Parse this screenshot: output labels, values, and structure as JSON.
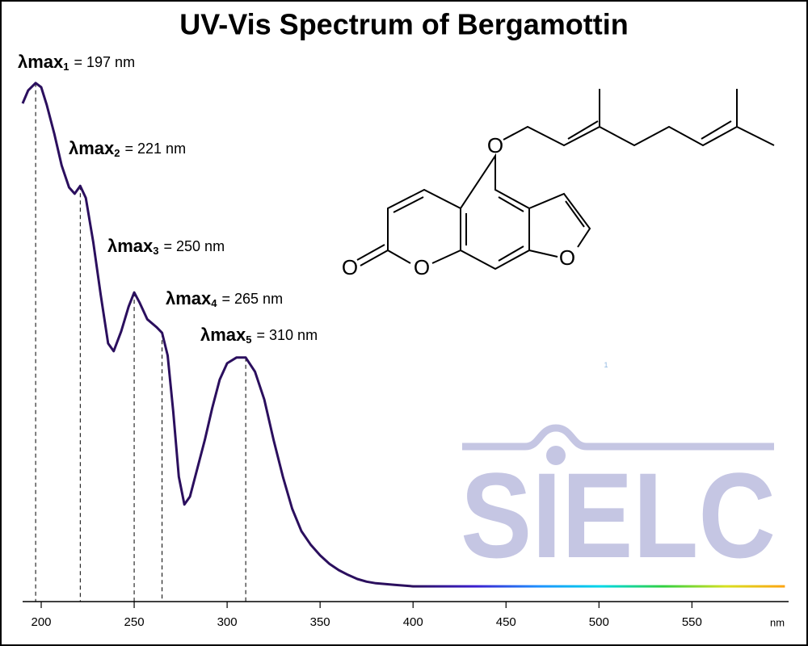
{
  "chart_data": {
    "type": "line",
    "title": "UV-Vis Spectrum of Bergamottin",
    "x_label": "nm",
    "x": [
      190,
      193,
      197,
      200,
      203,
      207,
      211,
      215,
      218,
      221,
      224,
      228,
      232,
      236,
      239,
      243,
      247,
      250,
      253,
      257,
      262,
      265,
      268,
      271,
      274,
      277,
      280,
      284,
      288,
      292,
      296,
      300,
      305,
      310,
      315,
      320,
      325,
      330,
      335,
      340,
      345,
      350,
      355,
      360,
      365,
      370,
      375,
      380,
      390,
      400,
      450,
      500,
      550,
      600
    ],
    "series": [
      {
        "name": "Bergamottin",
        "color": "#2b0f5e",
        "values": [
          0.949,
          0.974,
          0.988,
          0.98,
          0.946,
          0.892,
          0.831,
          0.789,
          0.777,
          0.792,
          0.769,
          0.685,
          0.585,
          0.492,
          0.477,
          0.515,
          0.562,
          0.589,
          0.569,
          0.538,
          0.523,
          0.512,
          0.469,
          0.362,
          0.238,
          0.185,
          0.2,
          0.254,
          0.308,
          0.369,
          0.423,
          0.454,
          0.465,
          0.465,
          0.438,
          0.385,
          0.308,
          0.238,
          0.177,
          0.134,
          0.108,
          0.088,
          0.072,
          0.06,
          0.051,
          0.043,
          0.038,
          0.035,
          0.032,
          0.029,
          0.029,
          0.029,
          0.029,
          0.029
        ]
      }
    ],
    "gradient_start": 400,
    "gradient_colors": [
      "#2b0f5e",
      "#3b1fd0",
      "#1e90ff",
      "#00d8e8",
      "#30d040",
      "#d8e020",
      "#ffa010"
    ],
    "xlim": [
      190,
      602
    ],
    "ylim": [
      0,
      1
    ],
    "xticks": [
      200,
      250,
      300,
      350,
      400,
      450,
      500,
      550
    ],
    "annotations": [
      {
        "label": "λmax",
        "sub": "1",
        "text": "= 197 nm",
        "x": 197
      },
      {
        "label": "λmax",
        "sub": "2",
        "text": "= 221 nm",
        "x": 221
      },
      {
        "label": "λmax",
        "sub": "3",
        "text": "= 250 nm",
        "x": 250
      },
      {
        "label": "λmax",
        "sub": "4",
        "text": "= 265 nm",
        "x": 265
      },
      {
        "label": "λmax",
        "sub": "5",
        "text": "= 310 nm",
        "x": 310
      }
    ]
  },
  "molecule_labels": [
    "O",
    "O",
    "O",
    "O"
  ],
  "watermark": "SIELC",
  "marker_note": "1"
}
